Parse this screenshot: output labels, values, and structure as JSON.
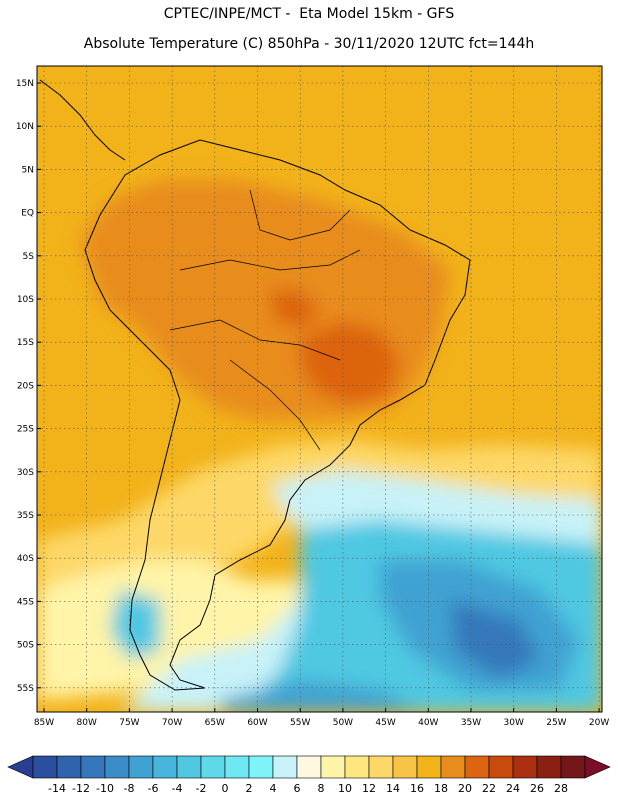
{
  "title_line1": "CPTEC/INPE/MCT -  Eta Model 15km - GFS",
  "title_line2": "Absolute Temperature (C) 850hPa - 30/11/2020 12UTC fct=144h",
  "lat_labels": [
    "15N",
    "10N",
    "5N",
    "EQ",
    "5S",
    "10S",
    "15S",
    "20S",
    "25S",
    "30S",
    "35S",
    "40S",
    "45S",
    "50S",
    "55S"
  ],
  "lon_labels": [
    "85W",
    "80W",
    "75W",
    "70W",
    "65W",
    "60W",
    "55W",
    "50W",
    "45W",
    "40W",
    "35W",
    "30W",
    "25W",
    "20W"
  ],
  "colorbar": {
    "ticks": [
      "-14",
      "-12",
      "-10",
      "-8",
      "-6",
      "-4",
      "-2",
      "0",
      "2",
      "4",
      "6",
      "8",
      "10",
      "12",
      "14",
      "16",
      "18",
      "20",
      "22",
      "24",
      "26",
      "28"
    ],
    "colors": [
      "#2a4f9e",
      "#2f63ad",
      "#3478bb",
      "#3a8dc8",
      "#40a2d2",
      "#48b6dc",
      "#50c8e2",
      "#5fd8ea",
      "#6ee8f2",
      "#7ef4f8",
      "#c8f2f8",
      "#fff8e0",
      "#fff4a8",
      "#ffe67e",
      "#fdd868",
      "#f7c448",
      "#f2b21a",
      "#e88c1e",
      "#dd6410",
      "#c84a0c",
      "#a83010",
      "#8a2012",
      "#74161a"
    ],
    "under_color": "#2a3e92",
    "over_color": "#7a0e26"
  },
  "colors": {
    "ocean_tropical": "#f2b21a",
    "land_hot": "#e88c1e",
    "land_hottest": "#dd6410",
    "subtropical": "#fdd868",
    "mild": "#fff4a8",
    "cool": "#c8f2f8",
    "cold": "#50c8e2",
    "colder": "#40a2d2",
    "coldest": "#3478bb"
  }
}
